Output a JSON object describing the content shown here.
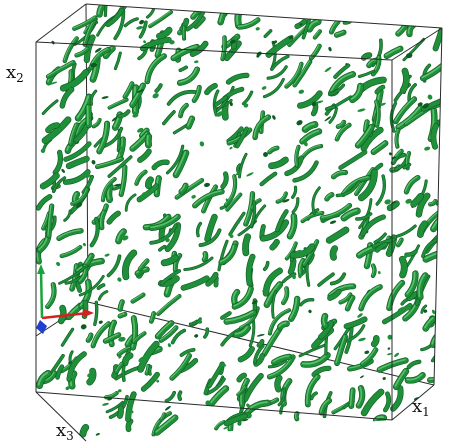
{
  "axes": {
    "x1": {
      "base": "x",
      "sub": "1"
    },
    "x2": {
      "base": "x",
      "sub": "2"
    },
    "x3": {
      "base": "x",
      "sub": "3"
    }
  },
  "colors": {
    "structure_fill": "#1f8f3a",
    "structure_highlight": "#5cc06a",
    "structure_shadow": "#0e5a22",
    "box_edge": "#2a2a2a",
    "triad_x": "#d42020",
    "triad_y": "#1aa33a",
    "triad_z": "#1f3fd0"
  }
}
